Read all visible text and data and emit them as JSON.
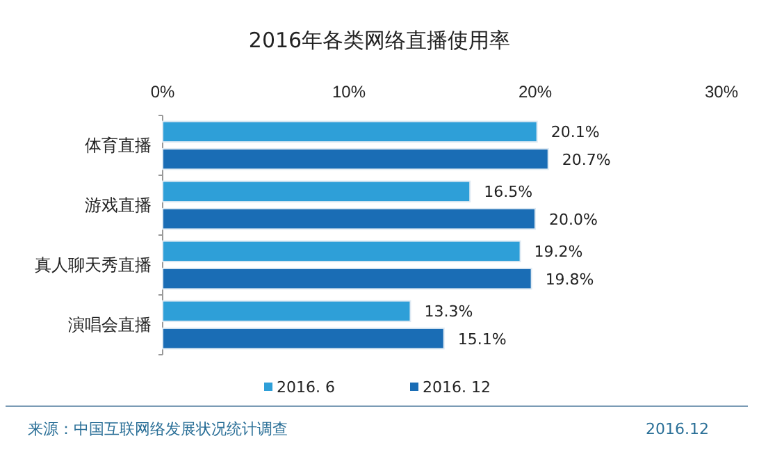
{
  "chart_data": {
    "type": "bar",
    "orientation": "horizontal",
    "title": "2016年各类网络直播使用率",
    "categories": [
      "体育直播",
      "游戏直播",
      "真人聊天秀直播",
      "演唱会直播"
    ],
    "series": [
      {
        "name": "2016. 6",
        "color": "#2e9fd8",
        "values": [
          20.1,
          16.5,
          19.2,
          13.3
        ]
      },
      {
        "name": "2016. 12",
        "color": "#1a6db5",
        "values": [
          20.7,
          20.0,
          19.8,
          15.1
        ]
      }
    ],
    "xlim": [
      0,
      30
    ],
    "xticks": [
      {
        "value": 0,
        "label": "0%"
      },
      {
        "value": 10,
        "label": "10%"
      },
      {
        "value": 20,
        "label": "20%"
      },
      {
        "value": 30,
        "label": "30%"
      }
    ],
    "value_labels": [
      [
        "20.1%",
        "16.5%",
        "19.2%",
        "13.3%"
      ],
      [
        "20.7%",
        "20.0%",
        "19.8%",
        "15.1%"
      ]
    ],
    "grid": false,
    "legend": "bottom",
    "annotations": [
      "来源：中国互联网络发展状况统计调查",
      "2016.12"
    ]
  }
}
